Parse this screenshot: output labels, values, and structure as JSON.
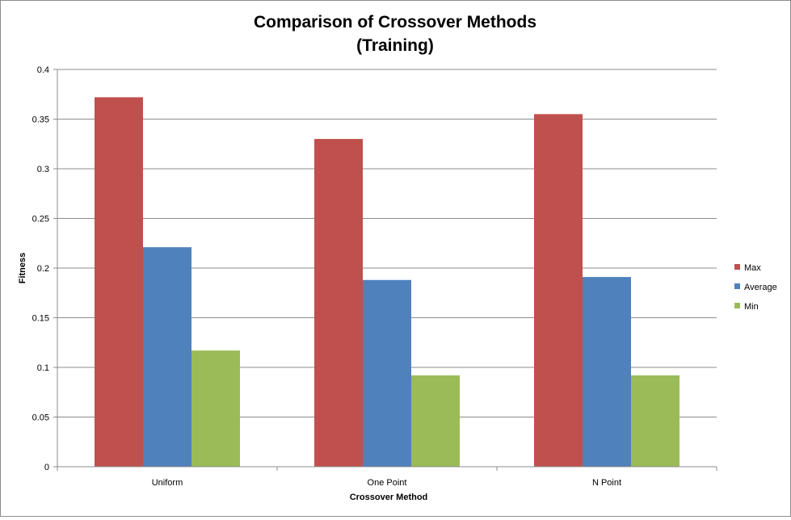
{
  "chart_data": {
    "type": "bar",
    "title": "Comparison of Crossover Methods",
    "subtitle": "(Training)",
    "xlabel": "Crossover Method",
    "ylabel": "Fitness",
    "categories": [
      "Uniform",
      "One Point",
      "N Point"
    ],
    "series": [
      {
        "name": "Max",
        "color": "#c0504d",
        "values": [
          0.372,
          0.33,
          0.355
        ]
      },
      {
        "name": "Average",
        "color": "#4f81bd",
        "values": [
          0.221,
          0.188,
          0.191
        ]
      },
      {
        "name": "Min",
        "color": "#9bbb59",
        "values": [
          0.117,
          0.092,
          0.092
        ]
      }
    ],
    "ylim": [
      0,
      0.4
    ],
    "yticks": [
      "0",
      "0.05",
      "0.1",
      "0.15",
      "0.2",
      "0.25",
      "0.3",
      "0.35",
      "0.4"
    ],
    "grid": true,
    "legend_position": "right"
  }
}
